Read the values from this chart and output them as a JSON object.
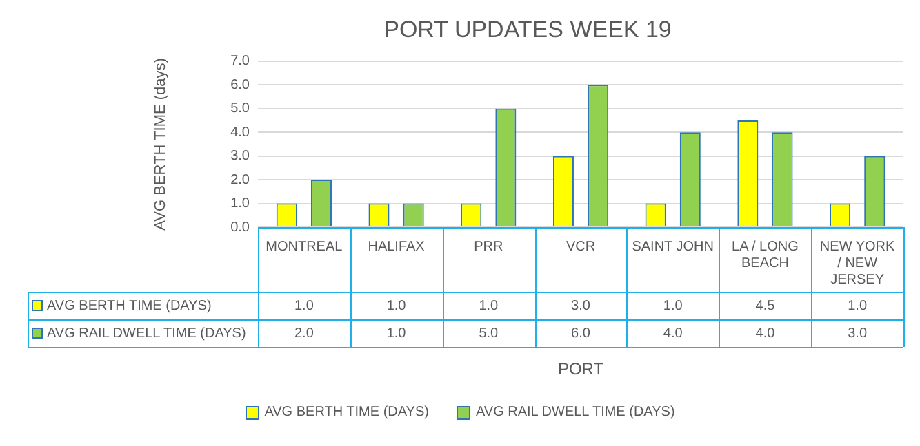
{
  "chart_data": {
    "type": "bar",
    "title": "PORT UPDATES WEEK 19",
    "xlabel": "PORT",
    "ylabel": "AVG BERTH TIME (days)",
    "categories": [
      "MONTREAL",
      "HALIFAX",
      "PRR",
      "VCR",
      "SAINT JOHN",
      "LA / LONG BEACH",
      "NEW YORK / NEW JERSEY"
    ],
    "series": [
      {
        "name": "AVG BERTH TIME (DAYS)",
        "color": "#ffff00",
        "values": [
          1,
          1,
          1,
          3,
          1,
          4.5,
          1
        ],
        "value_labels": [
          "1.0",
          "1.0",
          "1.0",
          "3.0",
          "1.0",
          "4.5",
          "1.0"
        ]
      },
      {
        "name": "AVG RAIL DWELL TIME (DAYS)",
        "color": "#92d050",
        "values": [
          2,
          1,
          5,
          6,
          4,
          4,
          3
        ],
        "value_labels": [
          "2.0",
          "1.0",
          "5.0",
          "6.0",
          "4.0",
          "4.0",
          "3.0"
        ]
      }
    ],
    "ylim": [
      0,
      7
    ],
    "yticks": [
      {
        "value": 0,
        "label": "0.0"
      },
      {
        "value": 1,
        "label": "1.0"
      },
      {
        "value": 2,
        "label": "2.0"
      },
      {
        "value": 3,
        "label": "3.0"
      },
      {
        "value": 4,
        "label": "4.0"
      },
      {
        "value": 5,
        "label": "5.0"
      },
      {
        "value": 6,
        "label": "6.0"
      },
      {
        "value": 7,
        "label": "7.0"
      }
    ],
    "grid": "y",
    "legend": "bottom"
  }
}
